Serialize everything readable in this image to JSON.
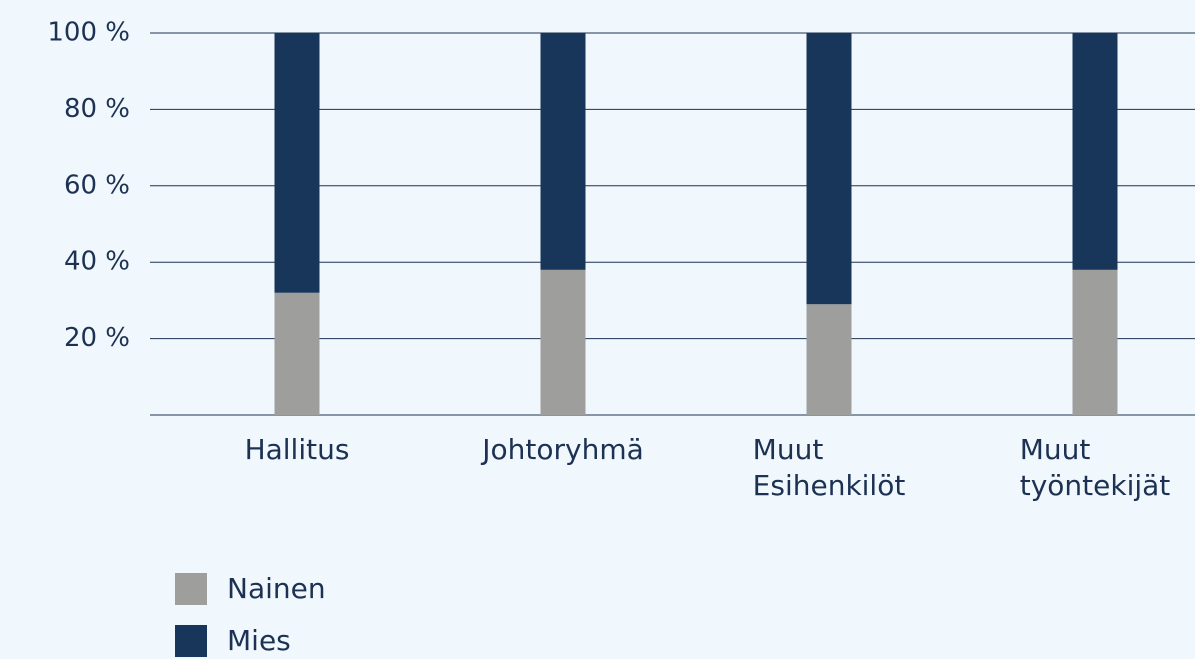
{
  "chart_data": {
    "type": "bar",
    "stacked": true,
    "categories": [
      "Hallitus",
      "Johtoryhmä",
      "Muut Esihenkilöt",
      "Muut työntekijät"
    ],
    "series": [
      {
        "name": "Nainen",
        "color": "#9e9e9c",
        "values": [
          32,
          38,
          29,
          38
        ]
      },
      {
        "name": "Mies",
        "color": "#183659",
        "values": [
          68,
          62,
          71,
          62
        ]
      }
    ],
    "ylim": [
      0,
      100
    ],
    "yticks": [
      {
        "value": 20,
        "label": "20 %"
      },
      {
        "value": 40,
        "label": "40 %"
      },
      {
        "value": 60,
        "label": "60 %"
      },
      {
        "value": 80,
        "label": "80 %"
      },
      {
        "value": 100,
        "label": "100 %"
      }
    ],
    "grid": true,
    "legend": "bottom-left"
  }
}
